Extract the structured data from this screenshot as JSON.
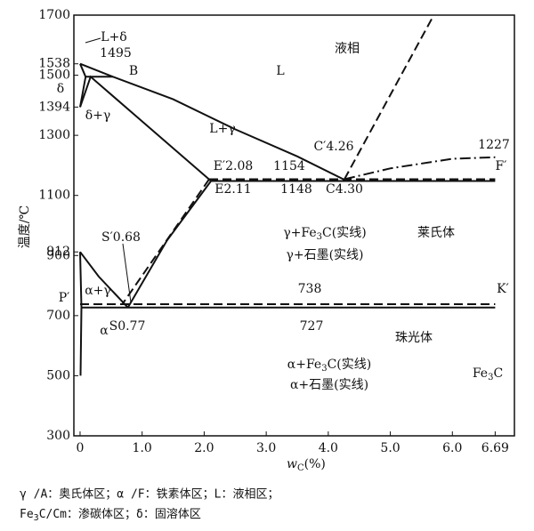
{
  "chart_data": {
    "type": "phase",
    "xlim": [
      -0.1,
      7.0
    ],
    "ylim": [
      300,
      1700
    ],
    "xticks": [
      0,
      {
        "value": 1,
        "label": "1.0"
      },
      {
        "value": 2,
        "label": "2.0"
      },
      {
        "value": 3,
        "label": "3.0"
      },
      {
        "value": 4,
        "label": "4.0"
      },
      {
        "value": 5,
        "label": "5.0"
      },
      {
        "value": 6,
        "label": "6.0"
      },
      6.69
    ],
    "yticks": [
      1700,
      1538,
      1500,
      1394,
      1300,
      1100,
      912,
      900,
      700,
      500,
      300
    ],
    "y_label": "温度/℃",
    "x_label": {
      "symbol": "w",
      "subscript": "C",
      "unit": "(%)"
    },
    "lines": [
      {
        "style": "solid",
        "x": [
          0,
          0.53,
          1.5,
          2.5,
          3.5,
          4.3
        ],
        "y": [
          1538,
          1495,
          1420,
          1320,
          1230,
          1148
        ]
      },
      {
        "style": "solid",
        "x": [
          0,
          0.09,
          0
        ],
        "y": [
          1538,
          1495,
          1394
        ]
      },
      {
        "style": "solid",
        "x": [
          0.09,
          0.53
        ],
        "y": [
          1495,
          1495
        ]
      },
      {
        "style": "solid",
        "x": [
          0,
          0.17,
          2.11
        ],
        "y": [
          1394,
          1495,
          1148
        ]
      },
      {
        "style": "solid",
        "x": [
          2.11,
          6.69
        ],
        "y": [
          1148,
          1148
        ]
      },
      {
        "style": "dashed",
        "x": [
          2.08,
          6.69
        ],
        "y": [
          1154,
          1154
        ]
      },
      {
        "style": "solid",
        "x": [
          2.11,
          1.4,
          0.77
        ],
        "y": [
          1148,
          950,
          727
        ]
      },
      {
        "style": "dashed",
        "x": [
          2.08,
          0.68
        ],
        "y": [
          1154,
          738
        ]
      },
      {
        "style": "solid",
        "x": [
          0,
          0.3,
          0.77
        ],
        "y": [
          912,
          830,
          727
        ]
      },
      {
        "style": "solid",
        "x": [
          0,
          0.0218
        ],
        "y": [
          912,
          727
        ]
      },
      {
        "style": "solid",
        "x": [
          0.0218,
          6.69
        ],
        "y": [
          727,
          727
        ]
      },
      {
        "style": "dashed",
        "x": [
          0,
          6.69
        ],
        "y": [
          738,
          738
        ]
      },
      {
        "style": "solid",
        "x": [
          0.0218,
          0.008
        ],
        "y": [
          727,
          500
        ]
      },
      {
        "style": "dashed",
        "x": [
          4.26,
          5.7
        ],
        "y": [
          1154,
          1700
        ]
      },
      {
        "style": "dashdot",
        "x": [
          4.26,
          5.0,
          6.0,
          6.69
        ],
        "y": [
          1154,
          1190,
          1222,
          1227
        ]
      }
    ],
    "annotations": [
      "L+δ",
      "1495",
      "B",
      "L",
      "液相",
      "δ",
      "δ+γ",
      "L+γ",
      "C′4.26",
      "1227",
      "E′2.08",
      "1154",
      "F′",
      "E2.11",
      "1148",
      "C4.30",
      "γ+Fe3C(实线)",
      "莱氏体",
      "γ+石墨(实线)",
      "S′0.68",
      "P′",
      "α+γ",
      "738",
      "K′",
      "S0.77",
      "727",
      "珠光体",
      "α",
      "α+Fe3C(实线)",
      "Fe3C",
      "α+石墨(实线)"
    ],
    "footnotes": [
      "γ /A：奥氏体区；α /F：铁素体区；L：液相区；",
      "Fe3C/Cm：渗碳体区；δ：固溶体区"
    ]
  }
}
